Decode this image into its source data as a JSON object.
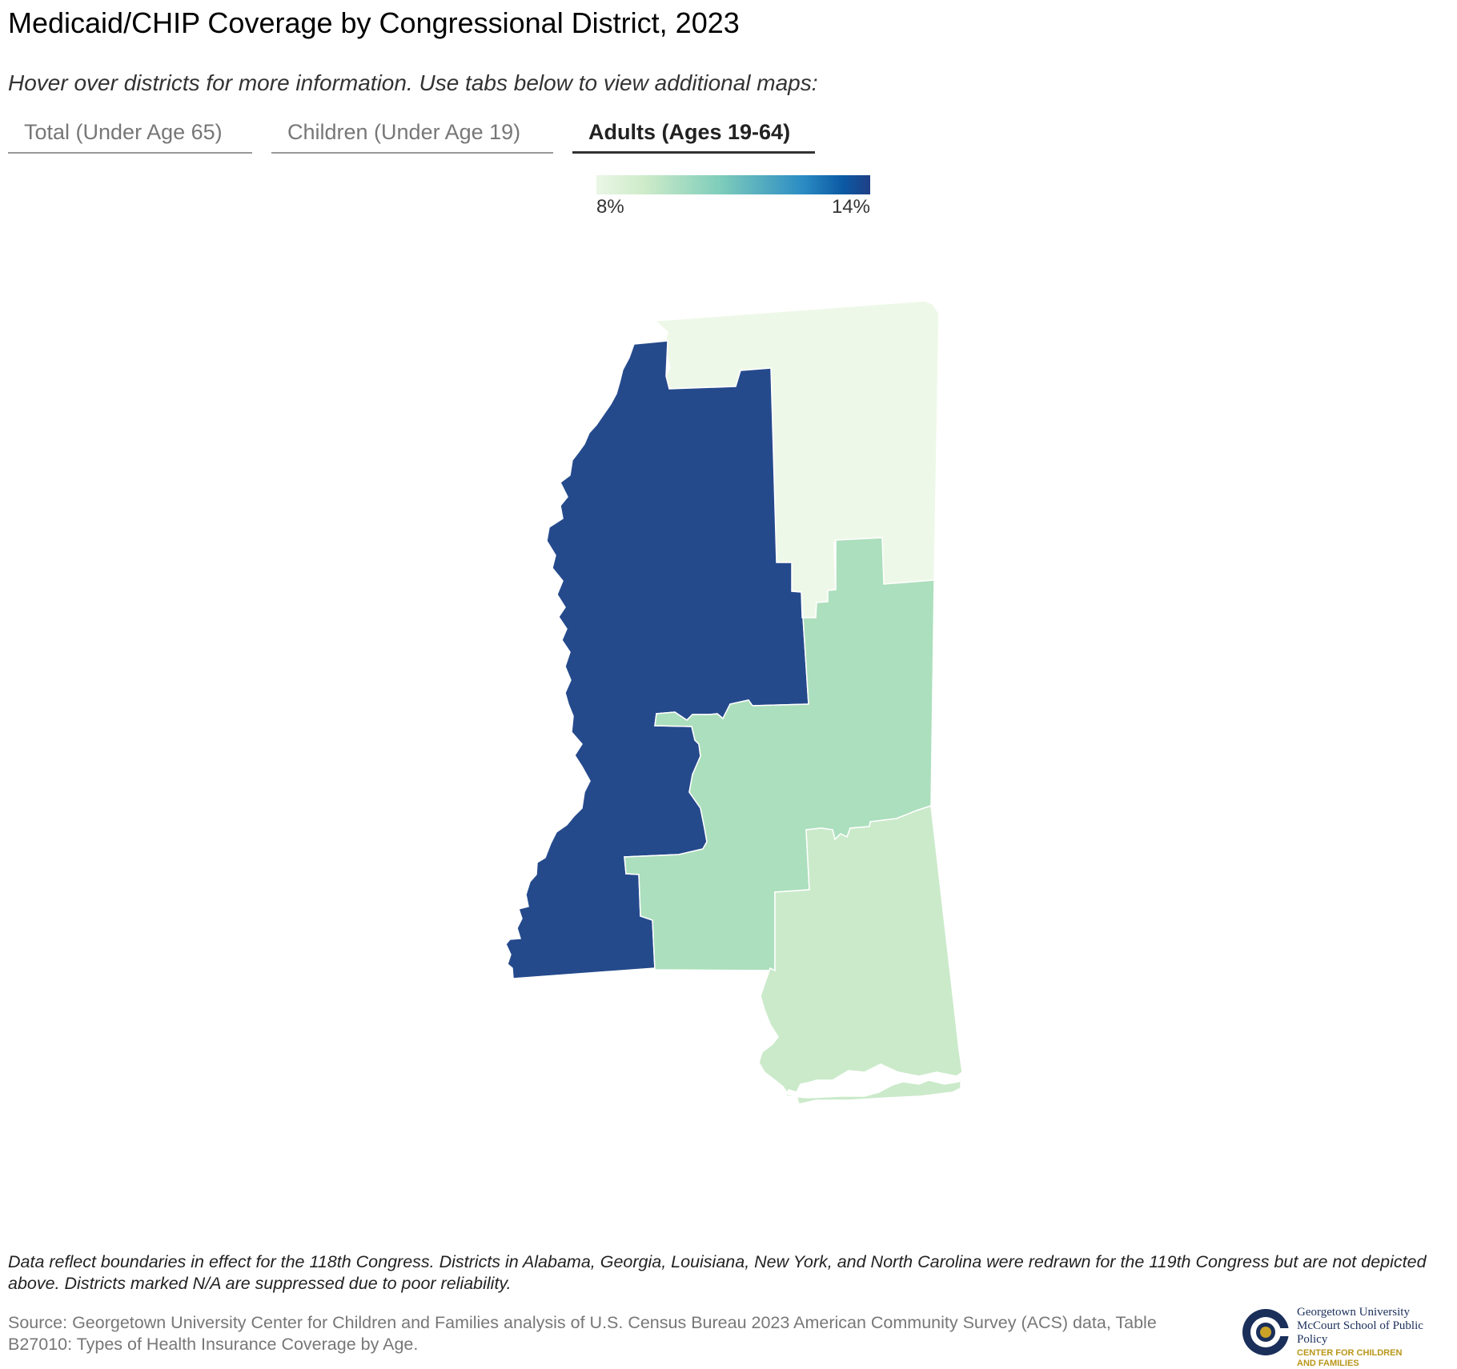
{
  "header": {
    "title": "Medicaid/CHIP Coverage by Congressional District, 2023",
    "subtitle": "Hover over districts for more information. Use tabs below to view additional maps:"
  },
  "tabs": [
    {
      "label": "Total (Under Age 65)",
      "active": false
    },
    {
      "label": "Children (Under Age 19)",
      "active": false
    },
    {
      "label": "Adults (Ages 19-64)",
      "active": true
    }
  ],
  "legend": {
    "min_label": "8%",
    "max_label": "14%",
    "min_value": 8,
    "max_value": 14,
    "colors": [
      "#eaf6e6",
      "#cdebc9",
      "#7fcdbb",
      "#2c8dc4",
      "#0b5aa3",
      "#1f3f86"
    ]
  },
  "map": {
    "districts": [
      {
        "id": "MS-1",
        "fill": "#eef8e8"
      },
      {
        "id": "MS-2",
        "fill": "#254a8c"
      },
      {
        "id": "MS-3",
        "fill": "#acdfbd"
      },
      {
        "id": "MS-4",
        "fill": "#cbeaca"
      }
    ]
  },
  "footer": {
    "note": "Data reflect boundaries in effect for the 118th Congress. Districts in Alabama, Georgia, Louisiana, New York, and North Carolina were redrawn for the 119th Congress but are not depicted above. Districts marked N/A are suppressed due to poor reliability.",
    "source": "Source: Georgetown University Center for Children and Families analysis of U.S. Census Bureau 2023 American Community Survey (ACS) data, Table B27010: Types of Health Insurance Coverage by Age."
  },
  "logo": {
    "line1": "Georgetown University",
    "line2": "McCourt School of Public Policy",
    "line3": "CENTER FOR CHILDREN",
    "line4": "AND FAMILIES"
  }
}
